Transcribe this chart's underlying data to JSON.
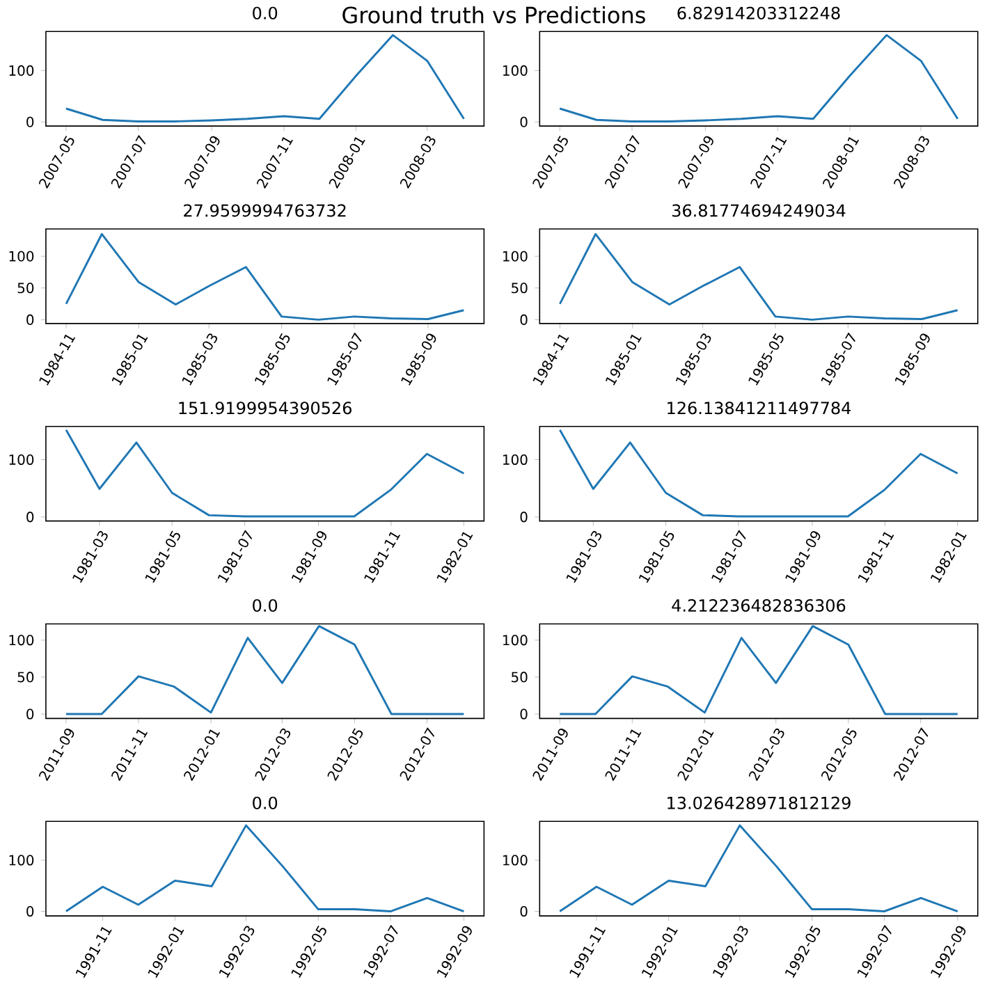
{
  "chart_data": [
    {
      "type": "line",
      "title": "0.0",
      "annotations": [
        "Ground truth vs Predictions"
      ],
      "color": "#1f77b4",
      "x": [
        "2007-05",
        "2007-06",
        "2007-07",
        "2007-08",
        "2007-09",
        "2007-10",
        "2007-11",
        "2007-12",
        "2008-01",
        "2008-02",
        "2008-03",
        "2008-04"
      ],
      "values": [
        26,
        4,
        1,
        1,
        3,
        6,
        11,
        6,
        90,
        169,
        119,
        6
      ],
      "xlim": [
        "2007-04-14",
        "2008-04-18"
      ],
      "xticks": [
        "2007-05",
        "2007-07",
        "2007-09",
        "2007-11",
        "2008-01",
        "2008-03"
      ],
      "ylim": [
        -8,
        176
      ],
      "yticks": [
        0,
        100
      ]
    },
    {
      "type": "line",
      "title": "6.82914203312248",
      "color": "#1f77b4",
      "x": [
        "2007-05",
        "2007-06",
        "2007-07",
        "2007-08",
        "2007-09",
        "2007-10",
        "2007-11",
        "2007-12",
        "2008-01",
        "2008-02",
        "2008-03",
        "2008-04"
      ],
      "values": [
        26,
        4,
        1,
        1,
        3,
        6,
        11,
        6,
        90,
        169,
        119,
        6
      ],
      "xlim": [
        "2007-04-14",
        "2008-04-18"
      ],
      "xticks": [
        "2007-05",
        "2007-07",
        "2007-09",
        "2007-11",
        "2008-01",
        "2008-03"
      ],
      "ylim": [
        -8,
        176
      ],
      "yticks": [
        0,
        100
      ]
    },
    {
      "type": "line",
      "title": "27.9599994763732",
      "color": "#1f77b4",
      "x": [
        "1984-11",
        "1984-12",
        "1985-01",
        "1985-02",
        "1985-03",
        "1985-04",
        "1985-05",
        "1985-06",
        "1985-07",
        "1985-08",
        "1985-09",
        "1985-10"
      ],
      "values": [
        25,
        135,
        59,
        24,
        53,
        83,
        5,
        0,
        5,
        2,
        1,
        15
      ],
      "xlim": [
        "1984-10-15",
        "1985-10-18"
      ],
      "xticks": [
        "1984-11",
        "1985-01",
        "1985-03",
        "1985-05",
        "1985-07",
        "1985-09"
      ],
      "ylim": [
        -6,
        143
      ],
      "yticks": [
        0,
        50,
        100
      ]
    },
    {
      "type": "line",
      "title": "36.81774694249034",
      "color": "#1f77b4",
      "x": [
        "1984-11",
        "1984-12",
        "1985-01",
        "1985-02",
        "1985-03",
        "1985-04",
        "1985-05",
        "1985-06",
        "1985-07",
        "1985-08",
        "1985-09",
        "1985-10"
      ],
      "values": [
        25,
        135,
        59,
        24,
        53,
        83,
        5,
        0,
        5,
        2,
        1,
        15
      ],
      "xlim": [
        "1984-10-15",
        "1985-10-18"
      ],
      "xticks": [
        "1984-11",
        "1985-01",
        "1985-03",
        "1985-05",
        "1985-07",
        "1985-09"
      ],
      "ylim": [
        -6,
        143
      ],
      "yticks": [
        0,
        50,
        100
      ]
    },
    {
      "type": "line",
      "title": "151.9199954390526",
      "color": "#1f77b4",
      "x": [
        "1981-02",
        "1981-03",
        "1981-04",
        "1981-05",
        "1981-06",
        "1981-07",
        "1981-08",
        "1981-09",
        "1981-10",
        "1981-11",
        "1981-12",
        "1982-01"
      ],
      "values": [
        152,
        49,
        130,
        42,
        3,
        1,
        1,
        1,
        1,
        48,
        110,
        76
      ],
      "xlim": [
        "1981-01-15",
        "1982-01-18"
      ],
      "xticks": [
        "1981-03",
        "1981-05",
        "1981-07",
        "1981-09",
        "1981-11",
        "1982-01"
      ],
      "ylim": [
        -7,
        158
      ],
      "yticks": [
        0,
        100
      ]
    },
    {
      "type": "line",
      "title": "126.13841211497784",
      "color": "#1f77b4",
      "x": [
        "1981-02",
        "1981-03",
        "1981-04",
        "1981-05",
        "1981-06",
        "1981-07",
        "1981-08",
        "1981-09",
        "1981-10",
        "1981-11",
        "1981-12",
        "1982-01"
      ],
      "values": [
        152,
        49,
        130,
        42,
        3,
        1,
        1,
        1,
        1,
        48,
        110,
        76
      ],
      "xlim": [
        "1981-01-15",
        "1982-01-18"
      ],
      "xticks": [
        "1981-03",
        "1981-05",
        "1981-07",
        "1981-09",
        "1981-11",
        "1982-01"
      ],
      "ylim": [
        -7,
        158
      ],
      "yticks": [
        0,
        100
      ]
    },
    {
      "type": "line",
      "title": "0.0",
      "color": "#1f77b4",
      "x": [
        "2011-09",
        "2011-10",
        "2011-11",
        "2011-12",
        "2012-01",
        "2012-02",
        "2012-03",
        "2012-04",
        "2012-05",
        "2012-06",
        "2012-07",
        "2012-08"
      ],
      "values": [
        0,
        0,
        51,
        37,
        2,
        103,
        42,
        119,
        94,
        0,
        0,
        0
      ],
      "xlim": [
        "2011-08-15",
        "2012-08-18"
      ],
      "xticks": [
        "2011-09",
        "2011-11",
        "2012-01",
        "2012-03",
        "2012-05",
        "2012-07"
      ],
      "ylim": [
        -6,
        122
      ],
      "yticks": [
        0,
        50,
        100
      ]
    },
    {
      "type": "line",
      "title": "4.212236482836306",
      "color": "#1f77b4",
      "x": [
        "2011-09",
        "2011-10",
        "2011-11",
        "2011-12",
        "2012-01",
        "2012-02",
        "2012-03",
        "2012-04",
        "2012-05",
        "2012-06",
        "2012-07",
        "2012-08"
      ],
      "values": [
        0,
        0,
        51,
        37,
        2,
        103,
        42,
        119,
        94,
        0,
        0,
        0
      ],
      "xlim": [
        "2011-08-15",
        "2012-08-18"
      ],
      "xticks": [
        "2011-09",
        "2011-11",
        "2012-01",
        "2012-03",
        "2012-05",
        "2012-07"
      ],
      "ylim": [
        -6,
        122
      ],
      "yticks": [
        0,
        50,
        100
      ]
    },
    {
      "type": "line",
      "title": "0.0",
      "color": "#1f77b4",
      "x": [
        "1991-10",
        "1991-11",
        "1991-12",
        "1992-01",
        "1992-02",
        "1992-03",
        "1992-04",
        "1992-05",
        "1992-06",
        "1992-07",
        "1992-08",
        "1992-09"
      ],
      "values": [
        0,
        48,
        13,
        60,
        49,
        168,
        88,
        4,
        4,
        0,
        26,
        0
      ],
      "xlim": [
        "1991-09-14",
        "1992-09-18"
      ],
      "xticks": [
        "1991-11",
        "1992-01",
        "1992-03",
        "1992-05",
        "1992-07",
        "1992-09"
      ],
      "ylim": [
        -9,
        176
      ],
      "yticks": [
        0,
        100
      ]
    },
    {
      "type": "line",
      "title": "13.026428971812129",
      "color": "#1f77b4",
      "x": [
        "1991-10",
        "1991-11",
        "1991-12",
        "1992-01",
        "1992-02",
        "1992-03",
        "1992-04",
        "1992-05",
        "1992-06",
        "1992-07",
        "1992-08",
        "1992-09"
      ],
      "values": [
        0,
        48,
        13,
        60,
        49,
        168,
        88,
        4,
        4,
        0,
        26,
        0
      ],
      "xlim": [
        "1991-09-14",
        "1992-09-18"
      ],
      "xticks": [
        "1991-11",
        "1992-01",
        "1992-03",
        "1992-05",
        "1992-07",
        "1992-09"
      ],
      "ylim": [
        -9,
        176
      ],
      "yticks": [
        0,
        100
      ]
    }
  ]
}
